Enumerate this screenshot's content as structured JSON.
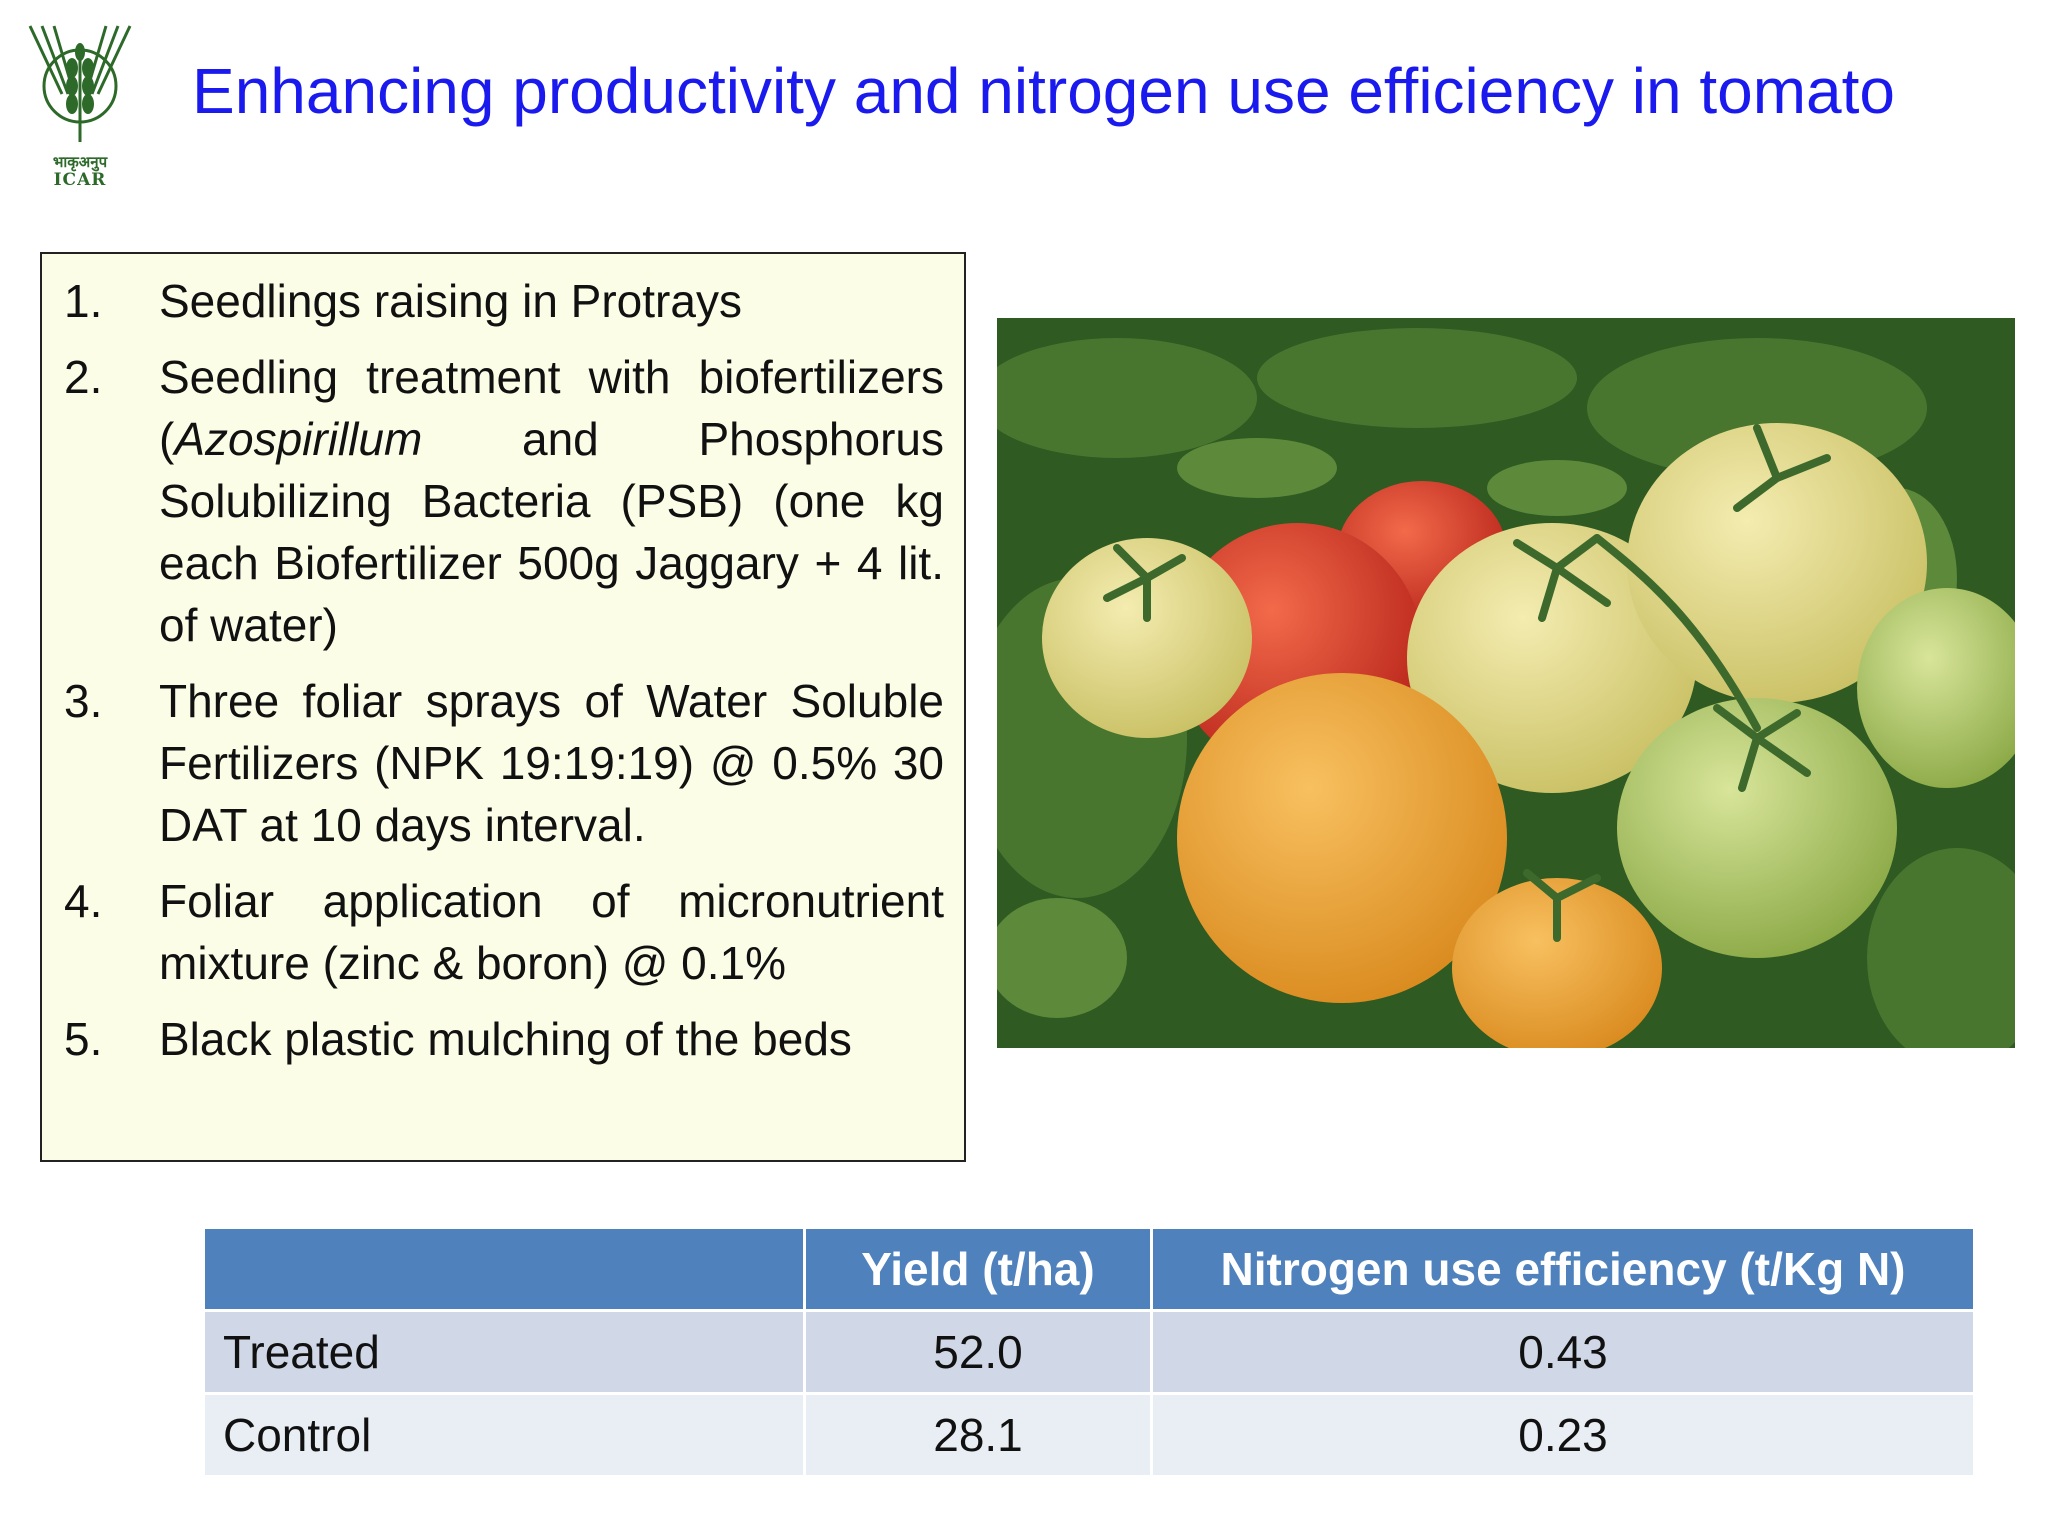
{
  "logo": {
    "hindi": "भाकृअनुप",
    "name": "ICAR"
  },
  "title": "Enhancing productivity and nitrogen use efficiency in tomato",
  "list": [
    {
      "num": "1.",
      "text": "Seedlings raising in Protrays"
    },
    {
      "num": "2.",
      "pre": "Seedling treatment with biofertilizers (",
      "italic": "Azospirillum",
      "post": " and Phosphorus Solubilizing Bacteria (PSB) (one kg each Biofertilizer 500g Jaggary + 4 lit. of water)"
    },
    {
      "num": "3.",
      "text": "Three foliar sprays of Water Soluble Fertilizers (NPK 19:19:19) @ 0.5% 30 DAT at 10 days interval."
    },
    {
      "num": "4.",
      "text": "Foliar application of micronutrient mixture (zinc & boron) @ 0.1%"
    },
    {
      "num": "5.",
      "text": "Black plastic mulching of the beds"
    }
  ],
  "table": {
    "headers": [
      "",
      "Yield (t/ha)",
      "Nitrogen use efficiency (t/Kg N)"
    ],
    "rows": [
      [
        "Treated",
        "52.0",
        "0.43"
      ],
      [
        "Control",
        "28.1",
        "0.23"
      ]
    ]
  },
  "colors": {
    "title": "#1a1aee",
    "table_header": "#4f81bd",
    "box_bg": "#fbfde6"
  }
}
